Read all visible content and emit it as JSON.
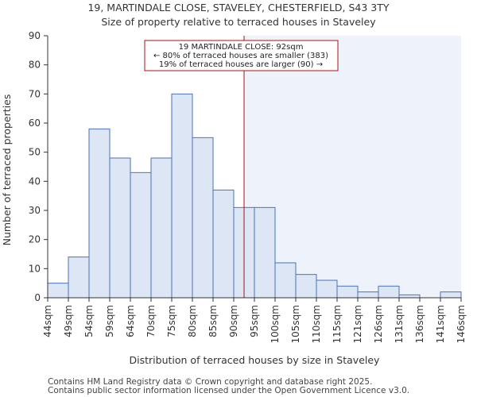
{
  "chart_data": {
    "type": "bar",
    "title": "19, MARTINDALE CLOSE, STAVELEY, CHESTERFIELD, S43 3TY",
    "subtitle": "Size of property relative to terraced houses in Staveley",
    "xlabel": "Distribution of terraced houses by size in Staveley",
    "ylabel": "Number of terraced properties",
    "ylim": [
      0,
      90
    ],
    "yticks": [
      0,
      10,
      20,
      30,
      40,
      50,
      60,
      70,
      80,
      90
    ],
    "xticks": [
      "44sqm",
      "49sqm",
      "54sqm",
      "59sqm",
      "64sqm",
      "70sqm",
      "75sqm",
      "80sqm",
      "85sqm",
      "90sqm",
      "95sqm",
      "100sqm",
      "105sqm",
      "110sqm",
      "115sqm",
      "121sqm",
      "126sqm",
      "131sqm",
      "136sqm",
      "141sqm",
      "146sqm"
    ],
    "values": [
      5,
      14,
      58,
      48,
      43,
      48,
      70,
      55,
      37,
      31,
      31,
      12,
      8,
      6,
      4,
      2,
      4,
      1,
      0,
      2
    ],
    "property_marker": {
      "bin_position": 9.5,
      "label": "19 MARTINDALE CLOSE: 92sqm"
    },
    "annotation": [
      "19 MARTINDALE CLOSE: 92sqm",
      "← 80% of terraced houses are smaller (383)",
      "19% of terraced houses are larger (90) →"
    ],
    "grid": false
  },
  "footer": [
    "Contains HM Land Registry data © Crown copyright and database right 2025.",
    "Contains public sector information licensed under the Open Government Licence v3.0."
  ],
  "colors": {
    "bar_fill": "#dce6f5",
    "bar_stroke": "#4a72b8",
    "highlight_fill": "#eef3fb",
    "marker": "#aa1111",
    "axis": "#333333"
  }
}
